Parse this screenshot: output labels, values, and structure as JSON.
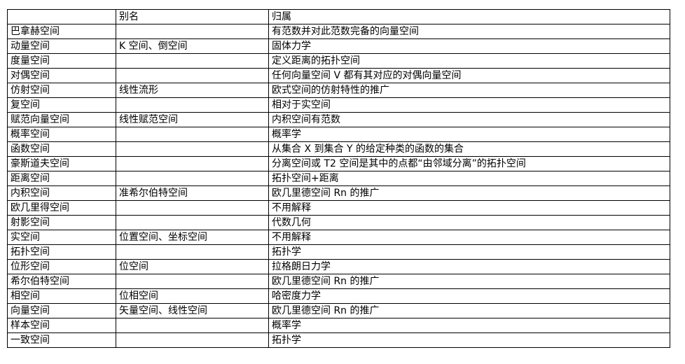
{
  "table": {
    "columns": [
      "",
      "别名",
      "归属"
    ],
    "rows": [
      {
        "name": "巴拿赫空间",
        "alias": "",
        "category": "有范数并对此范数完备的向量空间"
      },
      {
        "name": "动量空间",
        "alias": "K 空间、倒空间",
        "category": "固体力学"
      },
      {
        "name": "度量空间",
        "alias": "",
        "category": "定义距离的拓扑空间"
      },
      {
        "name": "对偶空间",
        "alias": "",
        "category": "任何向量空间 V 都有其对应的对偶向量空间"
      },
      {
        "name": "仿射空间",
        "alias": "线性流形",
        "category": "欧式空间的仿射特性的推广"
      },
      {
        "name": "复空间",
        "alias": "",
        "category": "相对于实空间"
      },
      {
        "name": "赋范向量空间",
        "alias": "线性赋范空间",
        "category": "内积空间有范数"
      },
      {
        "name": "概率空间",
        "alias": "",
        "category": "概率学"
      },
      {
        "name": "函数空间",
        "alias": "",
        "category": "从集合 X 到集合 Y 的给定种类的函数的集合"
      },
      {
        "name": "豪斯道夫空间",
        "alias": "",
        "category": "分离空间或 T2 空间是其中的点都“由邻域分离”的拓扑空间"
      },
      {
        "name": "距离空间",
        "alias": "",
        "category": "拓扑空间+距离"
      },
      {
        "name": "内积空间",
        "alias": "准希尔伯特空间",
        "category": "欧几里德空间  Rn 的推广"
      },
      {
        "name": "欧几里得空间",
        "alias": "",
        "category": "不用解释"
      },
      {
        "name": "射影空间",
        "alias": "",
        "category": "代数几何"
      },
      {
        "name": "实空间",
        "alias": "位置空间、坐标空间",
        "category": "不用解释"
      },
      {
        "name": "拓扑空间",
        "alias": "",
        "category": "拓扑学"
      },
      {
        "name": "位形空间",
        "alias": "位空间",
        "category": "拉格朗日力学"
      },
      {
        "name": "希尔伯特空间",
        "alias": "",
        "category": "欧几里德空间  Rn 的推广"
      },
      {
        "name": "相空间",
        "alias": "位相空间",
        "category": "哈密度力学"
      },
      {
        "name": "向量空间",
        "alias": "矢量空间、线性空间",
        "category": "欧几里德空间  Rn 的推广"
      },
      {
        "name": "样本空间",
        "alias": "",
        "category": "概率学"
      },
      {
        "name": "一致空间",
        "alias": "",
        "category": "拓扑学"
      }
    ]
  }
}
